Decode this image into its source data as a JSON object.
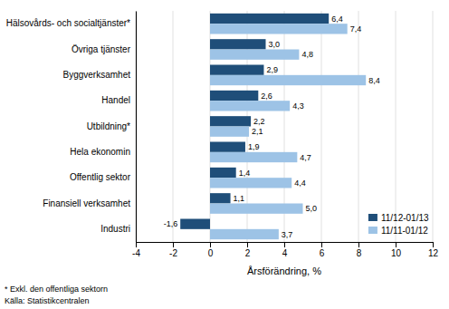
{
  "chart_data": {
    "type": "bar",
    "orientation": "horizontal",
    "categories": [
      "Industri",
      "Finansiell verksamhet",
      "Offentlig sektor",
      "Hela ekonomin",
      "Utbildning*",
      "Handel",
      "Byggverksamhet",
      "Övriga tjänster",
      "Hälsovårds- och socialtjänster*"
    ],
    "series": [
      {
        "name": "11/12-01/13",
        "color": "#1f4e79",
        "values": [
          -1.6,
          1.1,
          1.4,
          1.9,
          2.2,
          2.6,
          2.9,
          3.0,
          6.4
        ],
        "value_labels": [
          "-1,6",
          "1,1",
          "1,4",
          "1,9",
          "2,2",
          "2,6",
          "2,9",
          "3,0",
          "6,4"
        ]
      },
      {
        "name": "11/11-01/12",
        "color": "#9dc3e6",
        "values": [
          3.7,
          5.0,
          4.4,
          4.7,
          2.1,
          4.3,
          8.4,
          4.8,
          7.4
        ],
        "value_labels": [
          "3,7",
          "5,0",
          "4,4",
          "4,7",
          "2,1",
          "4,3",
          "8,4",
          "4,8",
          "7,4"
        ]
      }
    ],
    "xlabel": "Årsförändring, %",
    "xlim": [
      -4,
      12
    ],
    "xticks": [
      -4,
      -2,
      0,
      2,
      4,
      6,
      8,
      10,
      12
    ],
    "grid": true,
    "legend": "lower right",
    "data_labels": true,
    "annotations": [
      "* Exkl. den offentliga sektorn",
      "Källa: Statistikcentralen"
    ]
  }
}
